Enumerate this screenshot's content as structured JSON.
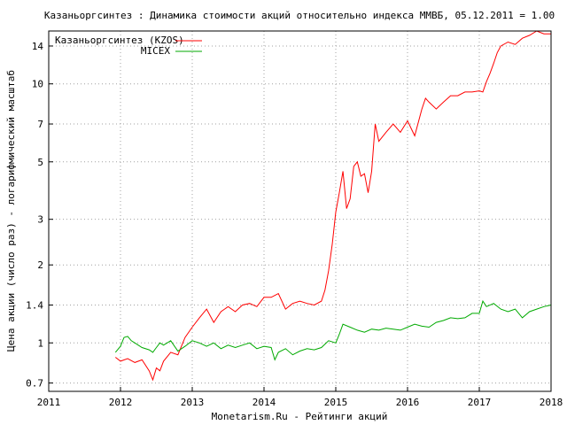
{
  "chart_data": {
    "type": "line",
    "title": "Казаньоргсинтез : Динамика стоимости акций относительно индекса ММВБ, 05.12.2011 = 1.00",
    "xlabel": "Monetarism.Ru - Рейтинги акций",
    "ylabel": "Цена акции (число раз) - логарифмический масштаб",
    "y_scale": "log",
    "grid": true,
    "legend_position": "top-left",
    "xlim": [
      2011,
      2018
    ],
    "ylim": [
      0.65,
      16
    ],
    "x_ticks": [
      "2011",
      "2012",
      "2013",
      "2014",
      "2015",
      "2016",
      "2017",
      "2018"
    ],
    "y_ticks": [
      0.7,
      1,
      1.4,
      2,
      3,
      5,
      7,
      10,
      14
    ],
    "series": [
      {
        "name": "Казаньоргсинтез (KZOS)",
        "color": "#ff0000",
        "x": [
          2011.93,
          2012.0,
          2012.1,
          2012.2,
          2012.3,
          2012.4,
          2012.45,
          2012.5,
          2012.55,
          2012.6,
          2012.7,
          2012.8,
          2012.9,
          2013.0,
          2013.1,
          2013.2,
          2013.3,
          2013.4,
          2013.5,
          2013.6,
          2013.7,
          2013.8,
          2013.9,
          2014.0,
          2014.1,
          2014.2,
          2014.3,
          2014.4,
          2014.5,
          2014.6,
          2014.7,
          2014.8,
          2014.85,
          2014.9,
          2014.95,
          2015.0,
          2015.05,
          2015.1,
          2015.15,
          2015.2,
          2015.25,
          2015.3,
          2015.35,
          2015.4,
          2015.45,
          2015.5,
          2015.55,
          2015.6,
          2015.7,
          2015.8,
          2015.9,
          2016.0,
          2016.1,
          2016.2,
          2016.25,
          2016.3,
          2016.4,
          2016.5,
          2016.6,
          2016.7,
          2016.8,
          2016.9,
          2017.0,
          2017.05,
          2017.1,
          2017.15,
          2017.2,
          2017.25,
          2017.3,
          2017.4,
          2017.5,
          2017.6,
          2017.7,
          2017.8,
          2017.9,
          2018.0
        ],
        "y": [
          0.88,
          0.85,
          0.87,
          0.84,
          0.86,
          0.78,
          0.72,
          0.8,
          0.78,
          0.85,
          0.92,
          0.9,
          1.05,
          1.15,
          1.25,
          1.35,
          1.2,
          1.32,
          1.38,
          1.32,
          1.4,
          1.42,
          1.38,
          1.5,
          1.5,
          1.55,
          1.35,
          1.42,
          1.45,
          1.42,
          1.4,
          1.45,
          1.6,
          1.9,
          2.4,
          3.2,
          3.8,
          4.6,
          3.3,
          3.6,
          4.8,
          5.0,
          4.4,
          4.5,
          3.8,
          4.6,
          7.0,
          6.0,
          6.5,
          7.0,
          6.5,
          7.2,
          6.3,
          8.0,
          8.8,
          8.5,
          8.0,
          8.5,
          9.0,
          9.0,
          9.3,
          9.3,
          9.4,
          9.3,
          10.2,
          11.0,
          12.0,
          13.2,
          14.0,
          14.5,
          14.2,
          15.0,
          15.4,
          16.0,
          15.6,
          15.6
        ]
      },
      {
        "name": "MICEX",
        "color": "#00aa00",
        "x": [
          2011.93,
          2012.0,
          2012.05,
          2012.1,
          2012.15,
          2012.2,
          2012.3,
          2012.4,
          2012.45,
          2012.5,
          2012.55,
          2012.6,
          2012.7,
          2012.8,
          2012.9,
          2013.0,
          2013.1,
          2013.2,
          2013.3,
          2013.4,
          2013.5,
          2013.6,
          2013.7,
          2013.8,
          2013.9,
          2014.0,
          2014.1,
          2014.15,
          2014.2,
          2014.3,
          2014.4,
          2014.5,
          2014.6,
          2014.7,
          2014.8,
          2014.9,
          2015.0,
          2015.05,
          2015.1,
          2015.2,
          2015.3,
          2015.4,
          2015.5,
          2015.6,
          2015.7,
          2015.8,
          2015.9,
          2016.0,
          2016.1,
          2016.2,
          2016.3,
          2016.4,
          2016.5,
          2016.6,
          2016.7,
          2016.8,
          2016.9,
          2017.0,
          2017.05,
          2017.1,
          2017.2,
          2017.3,
          2017.4,
          2017.5,
          2017.6,
          2017.7,
          2017.8,
          2017.9,
          2018.0
        ],
        "y": [
          0.92,
          0.97,
          1.05,
          1.06,
          1.02,
          1.0,
          0.96,
          0.94,
          0.92,
          0.96,
          1.0,
          0.98,
          1.02,
          0.93,
          0.97,
          1.02,
          1.0,
          0.97,
          1.0,
          0.95,
          0.98,
          0.96,
          0.98,
          1.0,
          0.95,
          0.97,
          0.96,
          0.86,
          0.92,
          0.95,
          0.9,
          0.93,
          0.95,
          0.94,
          0.96,
          1.02,
          1.0,
          1.08,
          1.18,
          1.15,
          1.12,
          1.1,
          1.13,
          1.12,
          1.14,
          1.13,
          1.12,
          1.15,
          1.18,
          1.16,
          1.15,
          1.2,
          1.22,
          1.25,
          1.24,
          1.25,
          1.3,
          1.3,
          1.45,
          1.38,
          1.42,
          1.35,
          1.32,
          1.35,
          1.25,
          1.32,
          1.35,
          1.38,
          1.4
        ]
      }
    ]
  }
}
